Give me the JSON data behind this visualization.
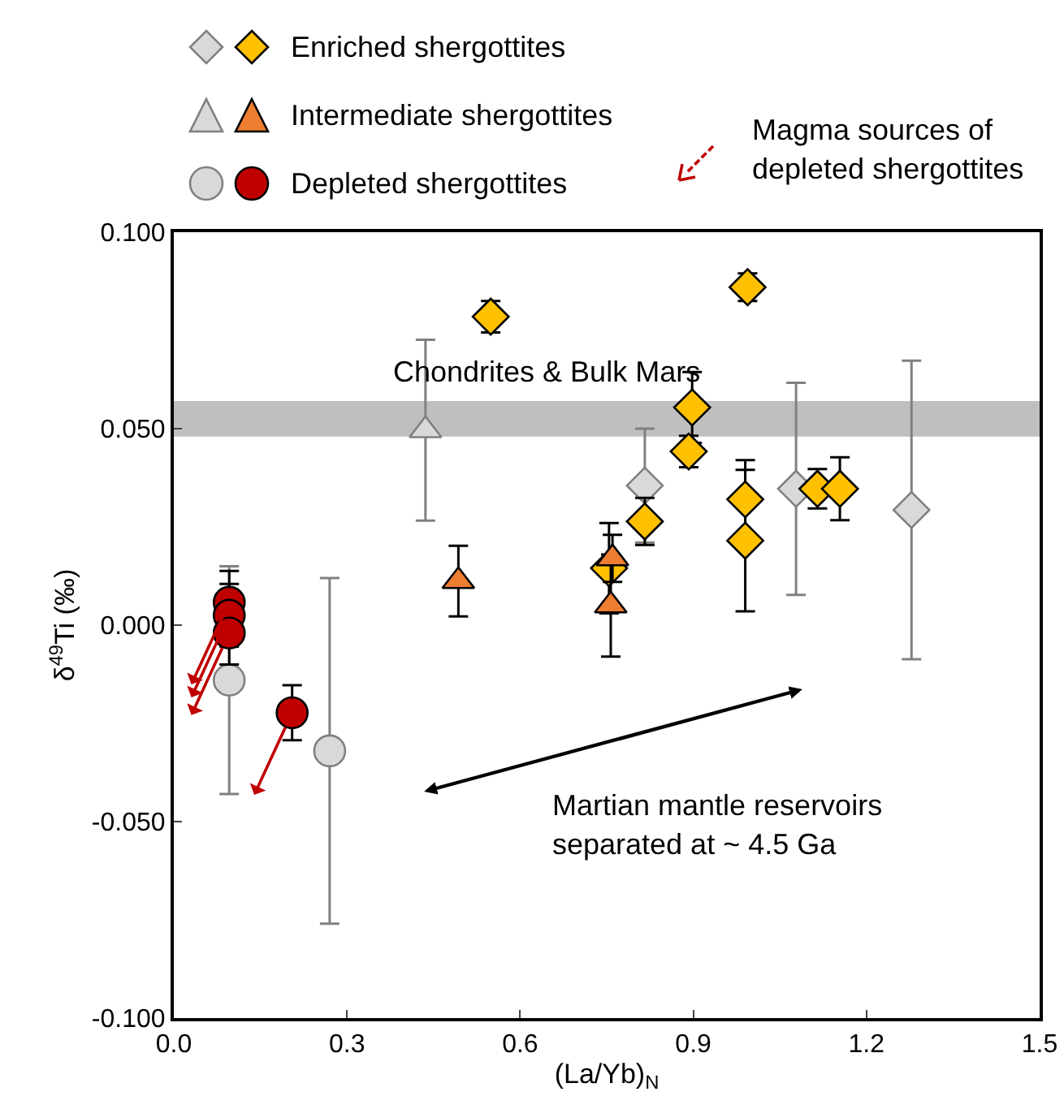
{
  "chart_data": {
    "type": "scatter",
    "xlabel": "(La/Yb)$_{N}$",
    "ylabel": "δ$^{49}$Ti (‰)",
    "xlim": [
      0,
      1.5
    ],
    "xticks": [
      {
        "value": 0,
        "label": "0.0"
      },
      {
        "value": 0.3,
        "label": "0.3"
      },
      {
        "value": 0.6,
        "label": "0.6"
      },
      {
        "value": 0.9,
        "label": "0.9"
      },
      {
        "value": 1.2,
        "label": "1.2"
      },
      {
        "value": 1.5,
        "label": "1.5"
      }
    ],
    "ylim": [
      -0.1,
      0.1
    ],
    "yticks": [
      {
        "value": -0.1,
        "label": "-0.100"
      },
      {
        "value": -0.05,
        "label": "-0.050"
      },
      {
        "value": 0,
        "label": "0.000"
      },
      {
        "value": 0.05,
        "label": "0.050"
      },
      {
        "value": 0.1,
        "label": "0.100"
      }
    ],
    "grid": false,
    "legend": "top",
    "series": [
      {
        "name": "Enriched shergottites",
        "color": "#ffc000",
        "marker": "diamond",
        "x": [
          0.549,
          0.898,
          0.892,
          0.816,
          0.754,
          0.994,
          0.99,
          0.99,
          1.115,
          1.154
        ],
        "values": [
          0.0785,
          0.0554,
          0.0442,
          0.0264,
          0.0145,
          0.086,
          0.032,
          0.0215,
          0.0347,
          0.0347
        ],
        "errors": [
          0.004,
          0.009,
          0.004,
          0.006,
          0.0115,
          0.0035,
          0.01,
          0.018,
          0.005,
          0.008
        ]
      },
      {
        "color": "#d9d9d9",
        "marker": "diamond",
        "x": [
          0.816,
          1.078,
          1.278
        ],
        "values": [
          0.0355,
          0.0347,
          0.0293
        ],
        "errors": [
          0.0145,
          0.027,
          0.038
        ]
      },
      {
        "name": "Intermediate shergottites",
        "color": "#ed7d31",
        "marker": "triangle",
        "x": [
          0.493,
          0.76,
          0.757
        ],
        "values": [
          0.0112,
          0.017,
          0.005
        ],
        "errors": [
          0.009,
          0.006,
          0.013
        ]
      },
      {
        "color": "#d9d9d9",
        "marker": "triangle",
        "x": [
          0.436
        ],
        "values": [
          0.0496
        ],
        "errors": [
          0.023
        ]
      },
      {
        "name": "Depleted shergottites",
        "color": "#c00000",
        "marker": "circle",
        "x": [
          0.096,
          0.096,
          0.096,
          0.205
        ],
        "values": [
          0.0058,
          0.0025,
          -0.002,
          -0.0223
        ],
        "errors": [
          0.008,
          0.008,
          0.008,
          0.007
        ]
      },
      {
        "color": "#d9d9d9",
        "marker": "circle",
        "x": [
          0.096,
          0.27
        ],
        "values": [
          -0.014,
          -0.032
        ],
        "errors": [
          0.029,
          0.044
        ]
      }
    ],
    "bands": [
      {
        "axis": "y",
        "from": 0.048,
        "to": 0.057,
        "label": "Chondrites & Bulk Mars",
        "color": "#bfbfbf"
      }
    ],
    "annotations": [
      "Magma sources of depleted shergottites",
      "Martian mantle reservoirs separated at ~ 4.5 Ga"
    ]
  }
}
